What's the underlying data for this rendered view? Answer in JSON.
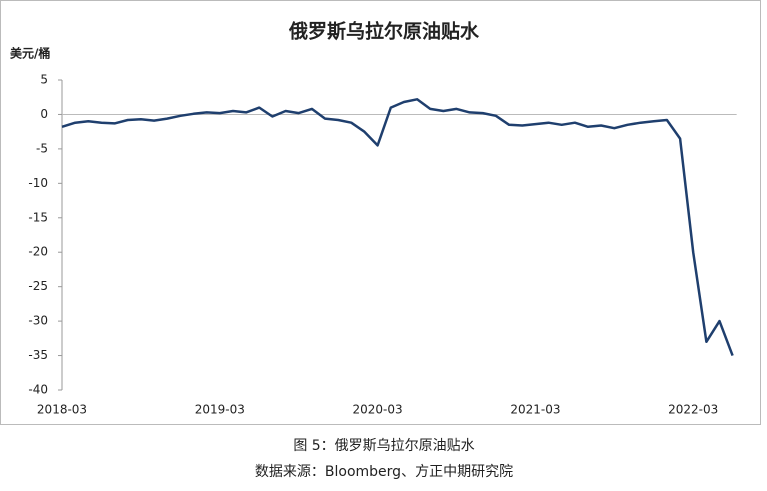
{
  "chart_data": {
    "type": "line",
    "title": "俄罗斯乌拉尔原油贴水",
    "y_label": "美元/桶",
    "caption": "图 5：俄罗斯乌拉尔原油贴水",
    "source": "数据来源：Bloomberg、方正中期研究院",
    "categories": [
      "2018-03",
      null,
      null,
      null,
      null,
      null,
      null,
      null,
      null,
      null,
      null,
      null,
      "2019-03",
      null,
      null,
      null,
      null,
      null,
      null,
      null,
      null,
      null,
      null,
      null,
      "2020-03",
      null,
      null,
      null,
      null,
      null,
      null,
      null,
      null,
      null,
      null,
      null,
      "2021-03",
      null,
      null,
      null,
      null,
      null,
      null,
      null,
      null,
      null,
      null,
      null,
      "2022-03",
      null,
      null,
      null
    ],
    "series": [
      {
        "color": "#1f3f6e",
        "values": [
          -1.8,
          -1.2,
          -1.0,
          -1.2,
          -1.3,
          -0.8,
          -0.7,
          -0.9,
          -0.6,
          -0.2,
          0.1,
          0.3,
          0.2,
          0.5,
          0.3,
          1.0,
          -0.3,
          0.5,
          0.2,
          0.8,
          -0.6,
          -0.8,
          -1.2,
          -2.5,
          -4.5,
          1.0,
          1.8,
          2.2,
          0.8,
          0.5,
          0.8,
          0.3,
          0.2,
          -0.2,
          -1.5,
          -1.6,
          -1.4,
          -1.2,
          -1.5,
          -1.2,
          -1.8,
          -1.6,
          -2.0,
          -1.5,
          -1.2,
          -1.0,
          -0.8,
          -3.5,
          -20,
          -33,
          -30,
          -35
        ]
      }
    ],
    "ylim": [
      -40,
      5
    ],
    "yticks": [
      -40,
      -35,
      -30,
      -25,
      -20,
      -15,
      -10,
      -5,
      0,
      5
    ]
  }
}
